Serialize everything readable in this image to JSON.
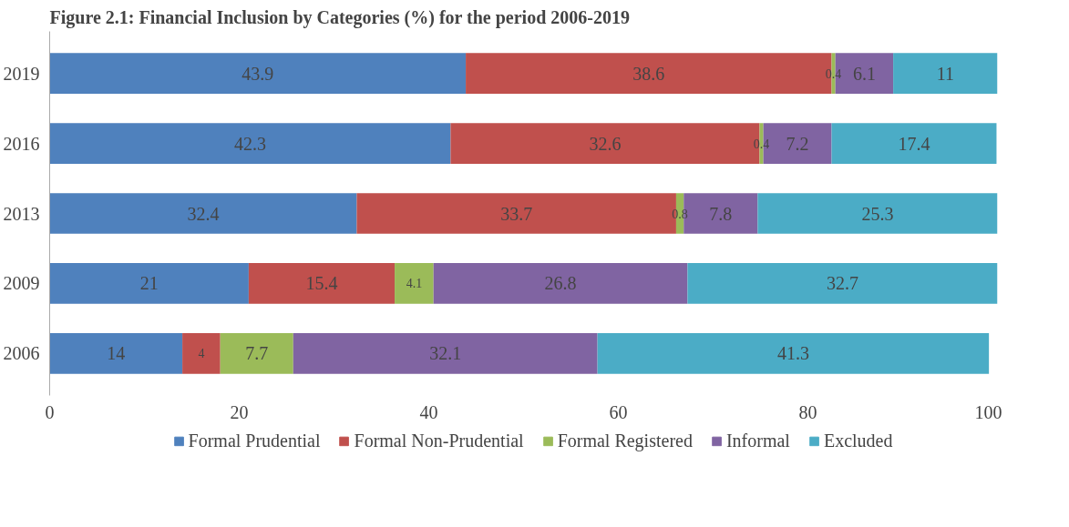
{
  "chart_data": {
    "type": "bar",
    "title": "Figure 2.1: Financial Inclusion by Categories (%) for the period 2006-2019",
    "orientation": "horizontal",
    "stacked": true,
    "categories": [
      "2019",
      "2016",
      "2013",
      "2009",
      "2006"
    ],
    "series": [
      {
        "name": "Formal Prudential",
        "color": "#4f81bd",
        "values": [
          43.9,
          42.3,
          32.4,
          21,
          14
        ]
      },
      {
        "name": "Formal Non-Prudential",
        "color": "#c0504d",
        "values": [
          38.6,
          32.6,
          33.7,
          15.4,
          4
        ]
      },
      {
        "name": "Formal Registered",
        "color": "#9bbb59",
        "values": [
          0.4,
          0.4,
          0.8,
          4.1,
          7.7
        ]
      },
      {
        "name": "Informal",
        "color": "#8064a2",
        "values": [
          6.1,
          7.2,
          7.8,
          26.8,
          32.1
        ]
      },
      {
        "name": "Excluded",
        "color": "#4bacc6",
        "values": [
          11,
          17.4,
          25.3,
          32.7,
          41.3
        ]
      }
    ],
    "xlim": [
      0,
      100
    ],
    "xticks": [
      0,
      20,
      40,
      60,
      80,
      100
    ],
    "grid": false,
    "legend": "bottom",
    "data_labels": true
  }
}
